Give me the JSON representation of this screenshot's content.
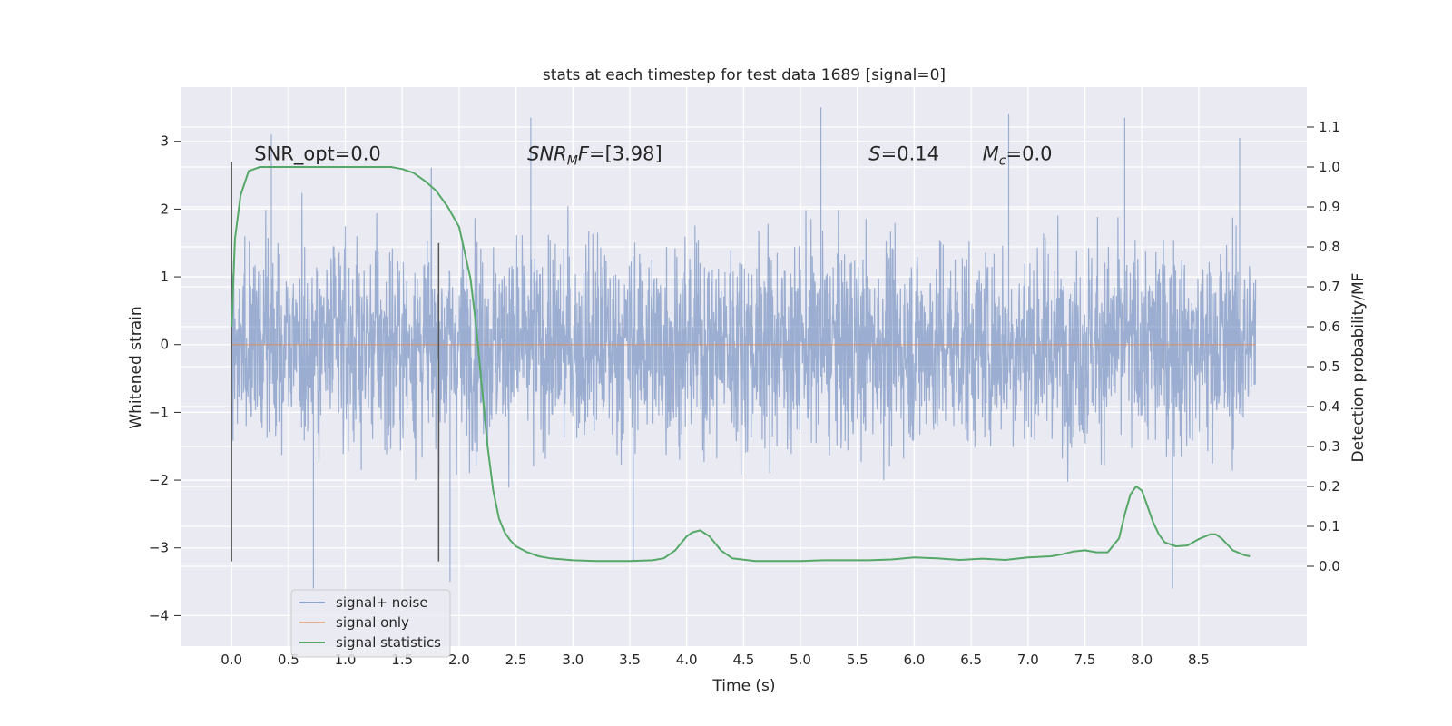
{
  "chart_data": {
    "type": "line",
    "title": "stats at each timestep for test data 1689 [signal=0]",
    "xlabel": "Time (s)",
    "ylabel": "Whitened strain",
    "ylabel_right": "Detection probability/MF",
    "xlim": [
      -0.44,
      9.45
    ],
    "ylim": [
      -4.45,
      3.8
    ],
    "ylim_right": [
      -0.2,
      1.2
    ],
    "x_ticks": [
      0.0,
      0.5,
      1.0,
      1.5,
      2.0,
      2.5,
      3.0,
      3.5,
      4.0,
      4.5,
      5.0,
      5.5,
      6.0,
      6.5,
      7.0,
      7.5,
      8.0,
      8.5
    ],
    "x_tick_labels": [
      "0.0",
      "0.5",
      "1.0",
      "1.5",
      "2.0",
      "2.5",
      "3.0",
      "3.5",
      "4.0",
      "4.5",
      "5.0",
      "5.5",
      "6.0",
      "6.5",
      "7.0",
      "7.5",
      "8.0",
      "8.5"
    ],
    "y_ticks": [
      -4,
      -3,
      -2,
      -1,
      0,
      1,
      2,
      3
    ],
    "y_tick_labels": [
      "−4",
      "−3",
      "−2",
      "−1",
      "0",
      "1",
      "2",
      "3"
    ],
    "y_right_ticks": [
      0.0,
      0.1,
      0.2,
      0.3,
      0.4,
      0.5,
      0.6,
      0.7,
      0.8,
      0.9,
      1.0,
      1.1
    ],
    "y_right_tick_labels": [
      "0.0",
      "0.1",
      "0.2",
      "0.3",
      "0.4",
      "0.5",
      "0.6",
      "0.7",
      "0.8",
      "0.9",
      "1.0",
      "1.1"
    ],
    "grid": true,
    "legend_position": "lower-left",
    "colors": {
      "signal_noise": "#4c72b0",
      "signal_only": "#dd8452",
      "statistics": "#55a868",
      "markers": "#555555",
      "background": "#eaeaf2",
      "grid": "#ffffff"
    },
    "series": [
      {
        "name": "signal+ noise",
        "axis": "left",
        "description_range": [
          -3.6,
          3.5
        ],
        "x_range": [
          0.0,
          9.0
        ],
        "peaks": [
          {
            "x": 0.35,
            "y": 3.1
          },
          {
            "x": 0.72,
            "y": -3.6
          },
          {
            "x": 1.92,
            "y": -3.5
          },
          {
            "x": 2.63,
            "y": 3.35
          },
          {
            "x": 3.53,
            "y": -3.2
          },
          {
            "x": 5.18,
            "y": 3.5
          },
          {
            "x": 6.83,
            "y": 3.4
          },
          {
            "x": 7.85,
            "y": 3.35
          },
          {
            "x": 8.27,
            "y": -3.6
          },
          {
            "x": 8.86,
            "y": 3.05
          }
        ]
      },
      {
        "name": "signal only",
        "axis": "left",
        "x": [
          0.0,
          9.0
        ],
        "y": [
          0.0,
          0.0
        ]
      },
      {
        "name": "signal statistics",
        "axis": "right",
        "x": [
          0.0,
          0.03,
          0.08,
          0.15,
          0.25,
          0.4,
          0.6,
          0.8,
          1.0,
          1.2,
          1.4,
          1.5,
          1.6,
          1.7,
          1.8,
          1.9,
          2.0,
          2.1,
          2.15,
          2.2,
          2.25,
          2.3,
          2.35,
          2.4,
          2.45,
          2.5,
          2.6,
          2.7,
          2.8,
          3.0,
          3.2,
          3.5,
          3.7,
          3.8,
          3.9,
          4.0,
          4.05,
          4.12,
          4.2,
          4.3,
          4.4,
          4.6,
          4.8,
          5.0,
          5.2,
          5.6,
          5.8,
          6.0,
          6.2,
          6.4,
          6.6,
          6.8,
          7.0,
          7.2,
          7.3,
          7.4,
          7.5,
          7.6,
          7.7,
          7.8,
          7.85,
          7.9,
          7.95,
          8.0,
          8.05,
          8.1,
          8.15,
          8.2,
          8.3,
          8.4,
          8.5,
          8.6,
          8.65,
          8.7,
          8.8,
          8.9,
          8.95
        ],
        "y": [
          0.6,
          0.82,
          0.93,
          0.99,
          1.0,
          1.0,
          1.0,
          1.0,
          1.0,
          1.0,
          1.0,
          0.995,
          0.985,
          0.965,
          0.94,
          0.9,
          0.85,
          0.72,
          0.6,
          0.45,
          0.3,
          0.19,
          0.12,
          0.085,
          0.065,
          0.05,
          0.035,
          0.025,
          0.02,
          0.015,
          0.013,
          0.013,
          0.015,
          0.02,
          0.04,
          0.075,
          0.085,
          0.09,
          0.075,
          0.04,
          0.02,
          0.013,
          0.013,
          0.013,
          0.015,
          0.015,
          0.017,
          0.022,
          0.02,
          0.016,
          0.019,
          0.016,
          0.022,
          0.025,
          0.03,
          0.037,
          0.04,
          0.035,
          0.035,
          0.07,
          0.13,
          0.18,
          0.2,
          0.19,
          0.15,
          0.11,
          0.08,
          0.06,
          0.05,
          0.052,
          0.068,
          0.08,
          0.08,
          0.07,
          0.04,
          0.028,
          0.025
        ]
      }
    ],
    "vertical_markers": [
      {
        "x": 0.0,
        "y_from": -3.2,
        "y_to": 2.7
      },
      {
        "x": 1.82,
        "y_from": -3.2,
        "y_to": 1.5
      }
    ],
    "annotations": [
      {
        "x": 0.2,
        "y": 2.72,
        "parts": [
          {
            "t": "SNR_opt=0.0"
          }
        ]
      },
      {
        "x": 2.6,
        "y": 2.72,
        "parts": [
          {
            "t": "SNR",
            "i": true
          },
          {
            "t": "M",
            "i": true,
            "sub": true
          },
          {
            "t": "F",
            "i": true
          },
          {
            "t": "=[3.98]"
          }
        ]
      },
      {
        "x": 5.6,
        "y": 2.72,
        "parts": [
          {
            "t": "S",
            "i": true
          },
          {
            "t": "=0.14"
          }
        ]
      },
      {
        "x": 6.6,
        "y": 2.72,
        "parts": [
          {
            "t": "M",
            "i": true
          },
          {
            "t": "c",
            "i": true,
            "sub": true
          },
          {
            "t": "=0.0"
          }
        ]
      }
    ]
  }
}
